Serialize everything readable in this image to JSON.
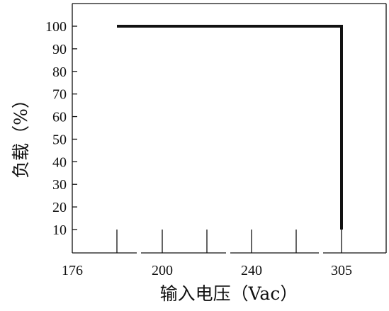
{
  "chart_data": {
    "type": "line",
    "title": "",
    "xlabel": "输入电压（Vac）",
    "ylabel": "负载（%）",
    "x_ticks": [
      {
        "value": 176,
        "label": "176"
      },
      {
        "value": 200,
        "label": "200"
      },
      {
        "value": 240,
        "label": "240"
      },
      {
        "value": 305,
        "label": "305"
      }
    ],
    "x_minor_ticks": [
      187,
      200,
      220,
      240,
      260,
      305
    ],
    "y_ticks": [
      10,
      20,
      30,
      40,
      50,
      60,
      70,
      80,
      90,
      100
    ],
    "xlim": [
      176,
      345
    ],
    "ylim": [
      0,
      105
    ],
    "grid": false,
    "legend": "none",
    "series": [
      {
        "x": [
          187,
          305,
          305
        ],
        "y": [
          100,
          100,
          10
        ],
        "color": "#111111"
      }
    ]
  }
}
